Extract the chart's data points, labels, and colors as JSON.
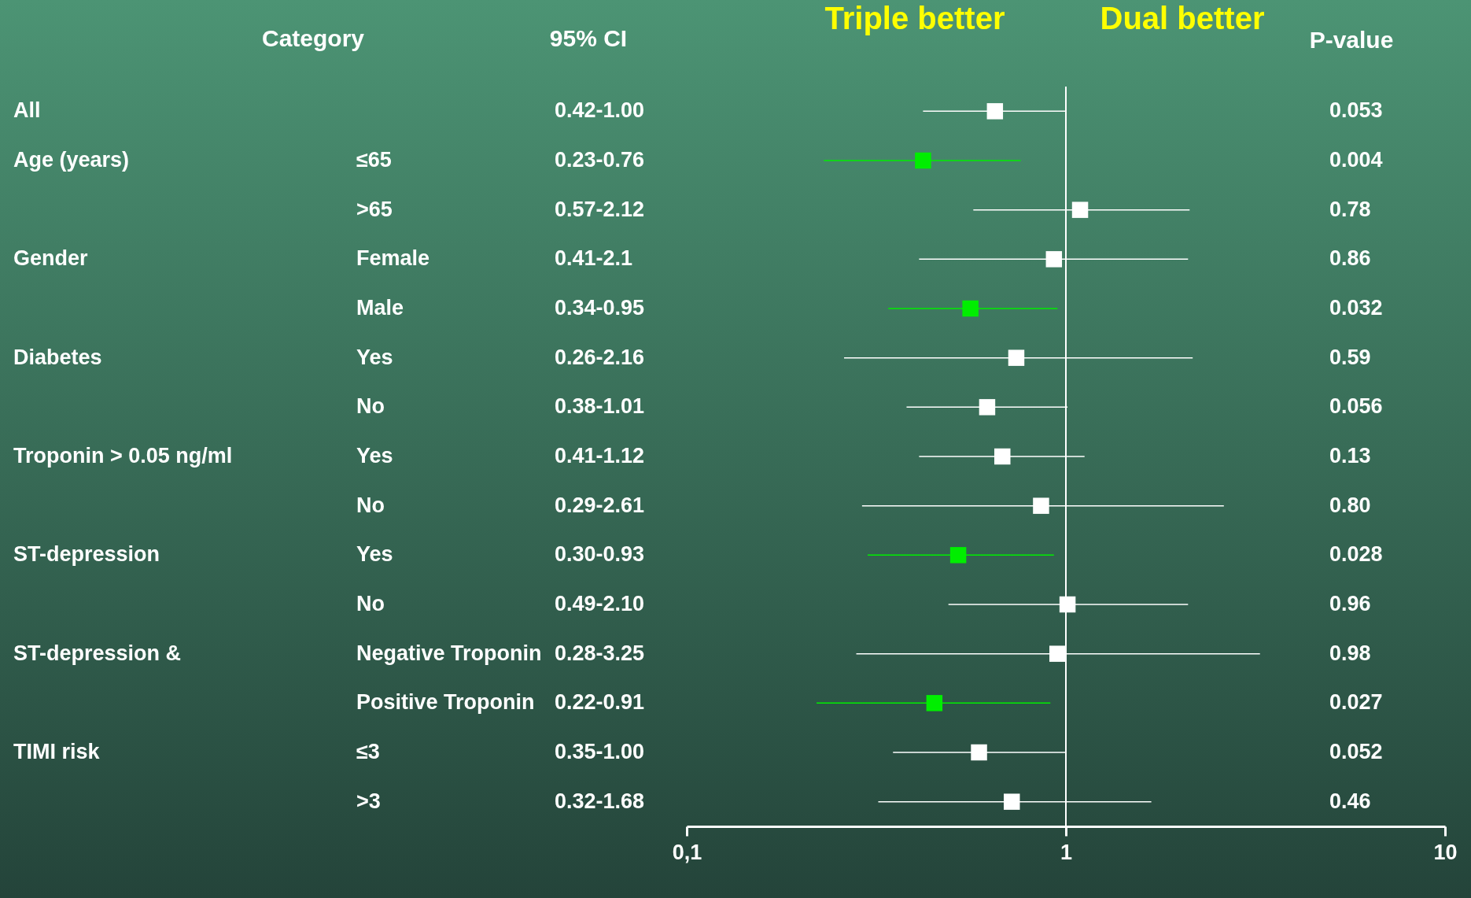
{
  "chart_data": {
    "type": "scatter",
    "orientation": "horizontal",
    "marker": "square",
    "annotations": [
      "Category",
      "95% CI",
      "P-value",
      "Triple better",
      "Dual better"
    ],
    "y_categories": [
      "All",
      "Age (years)",
      null,
      "Gender",
      null,
      "Diabetes",
      null,
      "Troponin > 0.05 ng/ml",
      null,
      "ST-depression",
      null,
      "ST-depression &",
      null,
      "TIMI risk",
      null
    ],
    "categories": [
      null,
      "≤65",
      ">65",
      "Female",
      "Male",
      "Yes",
      "No",
      "Yes",
      "No",
      "Yes",
      "No",
      "Negative Troponin",
      "Positive Troponin",
      "≤3",
      ">3"
    ],
    "y2_categories": [
      "0.053",
      "0.004",
      "0.78",
      "0.86",
      "0.032",
      "0.59",
      "0.056",
      "0.13",
      "0.80",
      "0.028",
      "0.96",
      "0.98",
      "0.027",
      "0.052",
      "0.46"
    ],
    "values": [
      0.65,
      0.42,
      1.09,
      0.93,
      0.56,
      0.74,
      0.62,
      0.68,
      0.86,
      0.52,
      1.01,
      0.95,
      0.45,
      0.59,
      0.72
    ],
    "errors": [
      [
        0.42,
        1.0
      ],
      [
        0.23,
        0.76
      ],
      [
        0.57,
        2.12
      ],
      [
        0.41,
        2.1
      ],
      [
        0.34,
        0.95
      ],
      [
        0.26,
        2.16
      ],
      [
        0.38,
        1.01
      ],
      [
        0.41,
        1.12
      ],
      [
        0.29,
        2.61
      ],
      [
        0.3,
        0.93
      ],
      [
        0.49,
        2.1
      ],
      [
        0.28,
        3.25
      ],
      [
        0.22,
        0.91
      ],
      [
        0.35,
        1.0
      ],
      [
        0.32,
        1.68
      ]
    ],
    "cell_labels": [
      "0.42-1.00",
      "0.23-0.76",
      "0.57-2.12",
      "0.41-2.1",
      "0.34-0.95",
      "0.26-2.16",
      "0.38-1.01",
      "0.41-1.12",
      "0.29-2.61",
      "0.30-0.93",
      "0.49-2.10",
      "0.28-3.25",
      "0.22-0.91",
      "0.35-1.00",
      "0.32-1.68"
    ],
    "colors": [
      "#ffffff",
      "#00ee00",
      "#ffffff",
      "#ffffff",
      "#00ee00",
      "#ffffff",
      "#ffffff",
      "#ffffff",
      "#ffffff",
      "#00ee00",
      "#ffffff",
      "#ffffff",
      "#00ee00",
      "#ffffff",
      "#ffffff"
    ],
    "log": "x",
    "xlim": [
      0.1,
      10
    ],
    "xticks": [
      {
        "value": 0.1,
        "label": "0,1"
      },
      1,
      10
    ],
    "ref_lines": [
      {
        "axis": "x",
        "value": 1,
        "color": "#ffffff"
      }
    ]
  }
}
